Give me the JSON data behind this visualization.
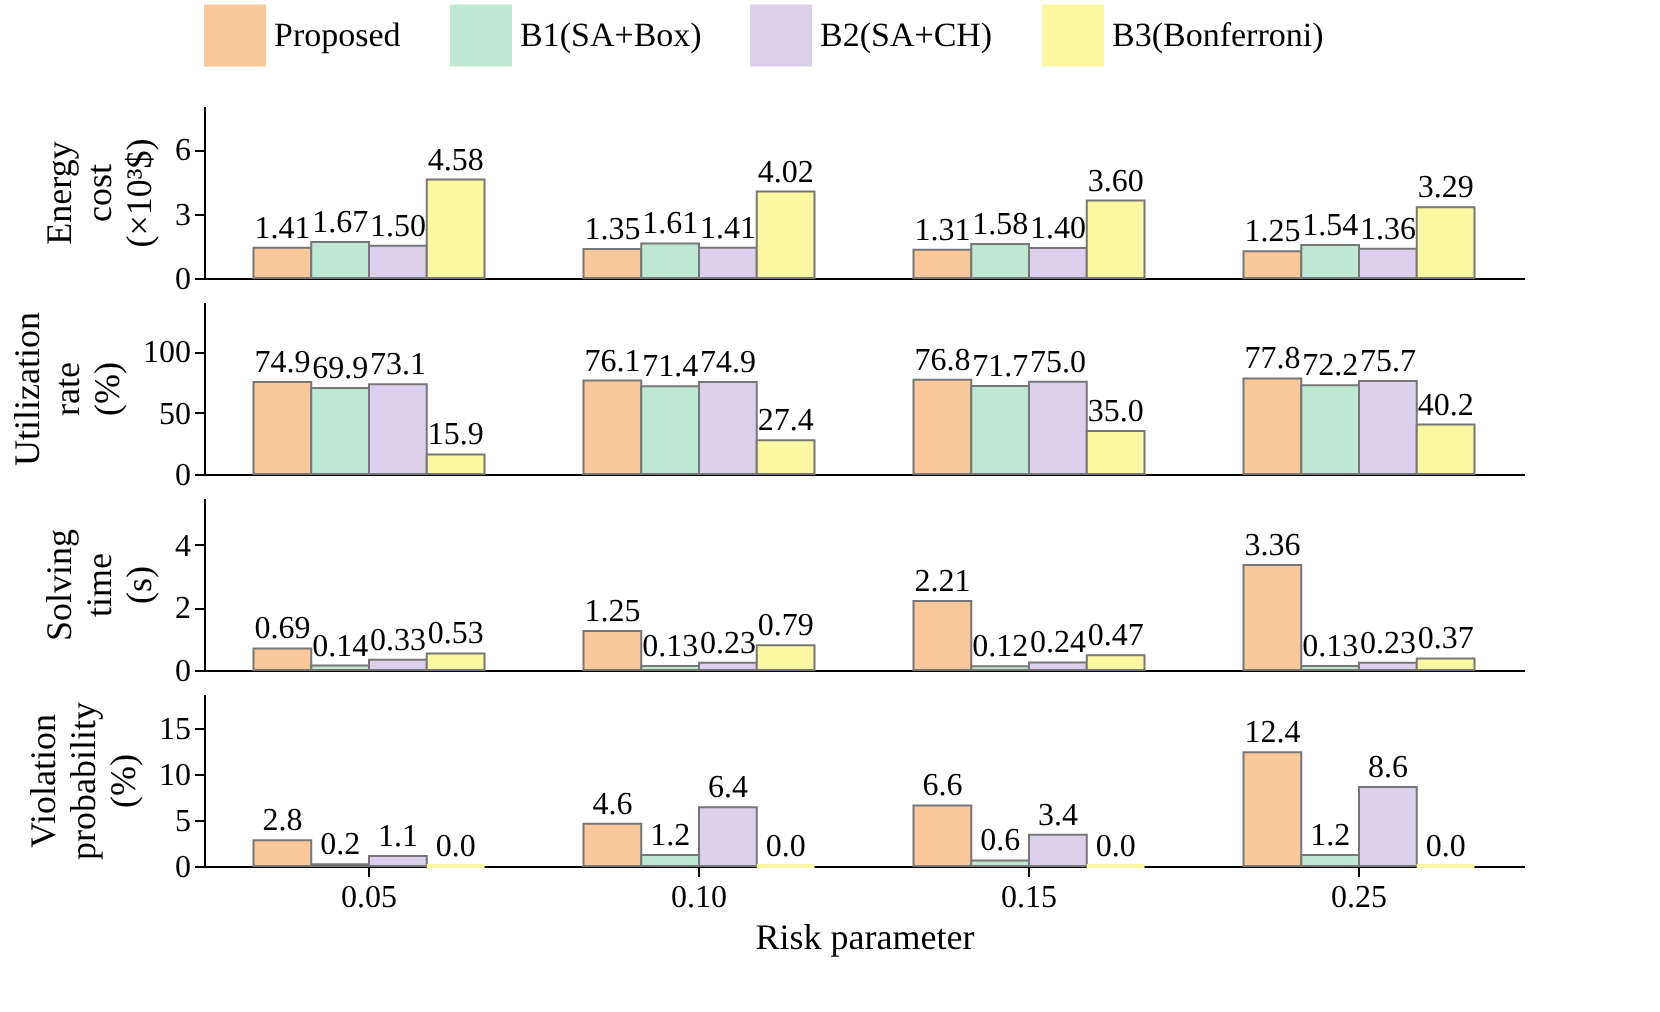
{
  "chart_data": [
    {
      "type": "bar",
      "categories": [
        "0.05",
        "0.10",
        "0.15",
        "0.25"
      ],
      "ylabel": "Energy\ncost\n(×10³$)",
      "ylim": [
        0,
        8
      ],
      "yticks": [
        0,
        3,
        6
      ],
      "legend": "top",
      "tick_labels": "y",
      "grid": false,
      "series": [
        {
          "name": "Proposed",
          "color": "#f9c89b",
          "values": [
            1.41,
            1.35,
            1.31,
            1.25
          ],
          "value_labels": [
            "1.41",
            "1.35",
            "1.31",
            "1.25"
          ]
        },
        {
          "name": "B1(SA+Box)",
          "color": "#bfe8d3",
          "values": [
            1.67,
            1.61,
            1.58,
            1.54
          ],
          "value_labels": [
            "1.67",
            "1.61",
            "1.58",
            "1.54"
          ]
        },
        {
          "name": "B2(SA+CH)",
          "color": "#ddd0ee",
          "values": [
            1.5,
            1.41,
            1.4,
            1.36
          ],
          "value_labels": [
            "1.50",
            "1.41",
            "1.40",
            "1.36"
          ]
        },
        {
          "name": "B3(Bonferroni)",
          "color": "#fbf7a3",
          "values": [
            4.58,
            4.02,
            3.6,
            3.29
          ],
          "value_labels": [
            "4.58",
            "4.02",
            "3.60",
            "3.29"
          ]
        }
      ]
    },
    {
      "type": "bar",
      "categories": [
        "0.05",
        "0.10",
        "0.15",
        "0.25"
      ],
      "ylabel": "Utilization\nrate\n(%)",
      "ylim": [
        0,
        140
      ],
      "yticks": [
        0,
        50,
        100
      ],
      "tick_labels": "y",
      "grid": false,
      "series": [
        {
          "name": "Proposed",
          "color": "#f9c89b",
          "values": [
            74.9,
            76.1,
            76.8,
            77.8
          ],
          "value_labels": [
            "74.9",
            "76.1",
            "76.8",
            "77.8"
          ]
        },
        {
          "name": "B1(SA+Box)",
          "color": "#bfe8d3",
          "values": [
            69.9,
            71.4,
            71.7,
            72.2
          ],
          "value_labels": [
            "69.9",
            "71.4",
            "71.7",
            "72.2"
          ]
        },
        {
          "name": "B2(SA+CH)",
          "color": "#ddd0ee",
          "values": [
            73.1,
            74.9,
            75.0,
            75.7
          ],
          "value_labels": [
            "73.1",
            "74.9",
            "75.0",
            "75.7"
          ]
        },
        {
          "name": "B3(Bonferroni)",
          "color": "#fbf7a3",
          "values": [
            15.9,
            27.4,
            35.0,
            40.2
          ],
          "value_labels": [
            "15.9",
            "27.4",
            "35.0",
            "40.2"
          ]
        }
      ]
    },
    {
      "type": "bar",
      "categories": [
        "0.05",
        "0.10",
        "0.15",
        "0.25"
      ],
      "ylabel": "Solving\ntime\n(s)",
      "ylim": [
        0,
        5.5
      ],
      "yticks": [
        0,
        2,
        4
      ],
      "tick_labels": "y",
      "grid": false,
      "series": [
        {
          "name": "Proposed",
          "color": "#f9c89b",
          "values": [
            0.69,
            1.25,
            2.21,
            3.36
          ],
          "value_labels": [
            "0.69",
            "1.25",
            "2.21",
            "3.36"
          ]
        },
        {
          "name": "B1(SA+Box)",
          "color": "#bfe8d3",
          "values": [
            0.14,
            0.13,
            0.12,
            0.13
          ],
          "value_labels": [
            "0.14",
            "0.13",
            "0.12",
            "0.13"
          ]
        },
        {
          "name": "B2(SA+CH)",
          "color": "#ddd0ee",
          "values": [
            0.33,
            0.23,
            0.24,
            0.23
          ],
          "value_labels": [
            "0.33",
            "0.23",
            "0.24",
            "0.23"
          ]
        },
        {
          "name": "B3(Bonferroni)",
          "color": "#fbf7a3",
          "values": [
            0.53,
            0.79,
            0.47,
            0.37
          ],
          "value_labels": [
            "0.53",
            "0.79",
            "0.47",
            "0.37"
          ]
        }
      ]
    },
    {
      "type": "bar",
      "categories": [
        "0.05",
        "0.10",
        "0.15",
        "0.25"
      ],
      "ylabel": "Violation\nprobability\n(%)",
      "xlabel": "Risk parameter",
      "ylim": [
        0,
        18.75
      ],
      "yticks": [
        0,
        5,
        10,
        15
      ],
      "grid": false,
      "series": [
        {
          "name": "Proposed",
          "color": "#f9c89b",
          "values": [
            2.8,
            4.6,
            6.6,
            12.4
          ],
          "value_labels": [
            "2.8",
            "4.6",
            "6.6",
            "12.4"
          ]
        },
        {
          "name": "B1(SA+Box)",
          "color": "#bfe8d3",
          "values": [
            0.2,
            1.2,
            0.6,
            1.2
          ],
          "value_labels": [
            "0.2",
            "1.2",
            "0.6",
            "1.2"
          ]
        },
        {
          "name": "B2(SA+CH)",
          "color": "#ddd0ee",
          "values": [
            1.1,
            6.4,
            3.4,
            8.6
          ],
          "value_labels": [
            "1.1",
            "6.4",
            "3.4",
            "8.6"
          ]
        },
        {
          "name": "B3(Bonferroni)",
          "color": "#fbf7a3",
          "values": [
            0.0,
            0.0,
            0.0,
            0.0
          ],
          "value_labels": [
            "0.0",
            "0.0",
            "0.0",
            "0.0"
          ]
        }
      ]
    }
  ]
}
